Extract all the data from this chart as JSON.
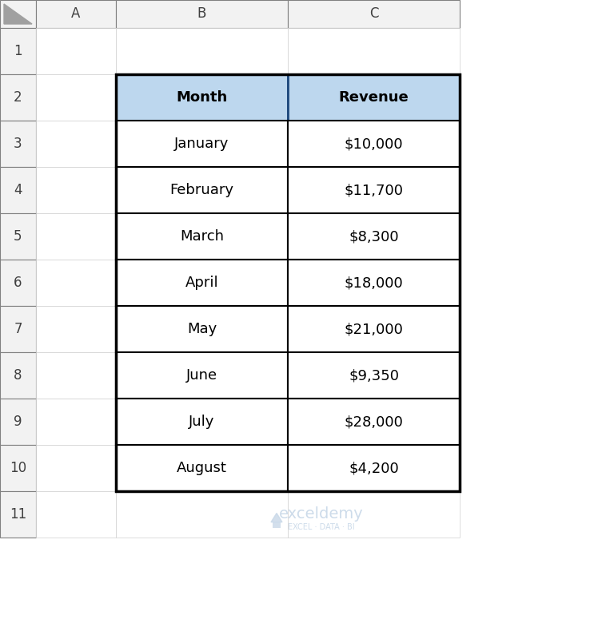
{
  "headers": [
    "Month",
    "Revenue"
  ],
  "rows": [
    [
      "January",
      "$10,000"
    ],
    [
      "February",
      "$11,700"
    ],
    [
      "March",
      "$8,300"
    ],
    [
      "April",
      "$18,000"
    ],
    [
      "May",
      "$21,000"
    ],
    [
      "June",
      "$9,350"
    ],
    [
      "July",
      "$28,000"
    ],
    [
      "August",
      "$4,200"
    ]
  ],
  "col_labels": [
    "A",
    "B",
    "C"
  ],
  "row_labels": [
    "1",
    "2",
    "3",
    "4",
    "5",
    "6",
    "7",
    "8",
    "9",
    "10",
    "11"
  ],
  "header_bg": "#BDD7EE",
  "cell_bg": "#FFFFFF",
  "text_color": "#000000",
  "header_font_size": 13,
  "cell_font_size": 13,
  "col_label_font_size": 12,
  "row_label_font_size": 12,
  "excel_bg": "#FFFFFF",
  "col_header_bg": "#F2F2F2",
  "row_header_bg": "#F2F2F2",
  "gridline_color": "#D0D0D0",
  "watermark_text": "exceldemy",
  "watermark_subtext": "EXCEL · DATA · BI",
  "watermark_color": "#C8D8E8"
}
